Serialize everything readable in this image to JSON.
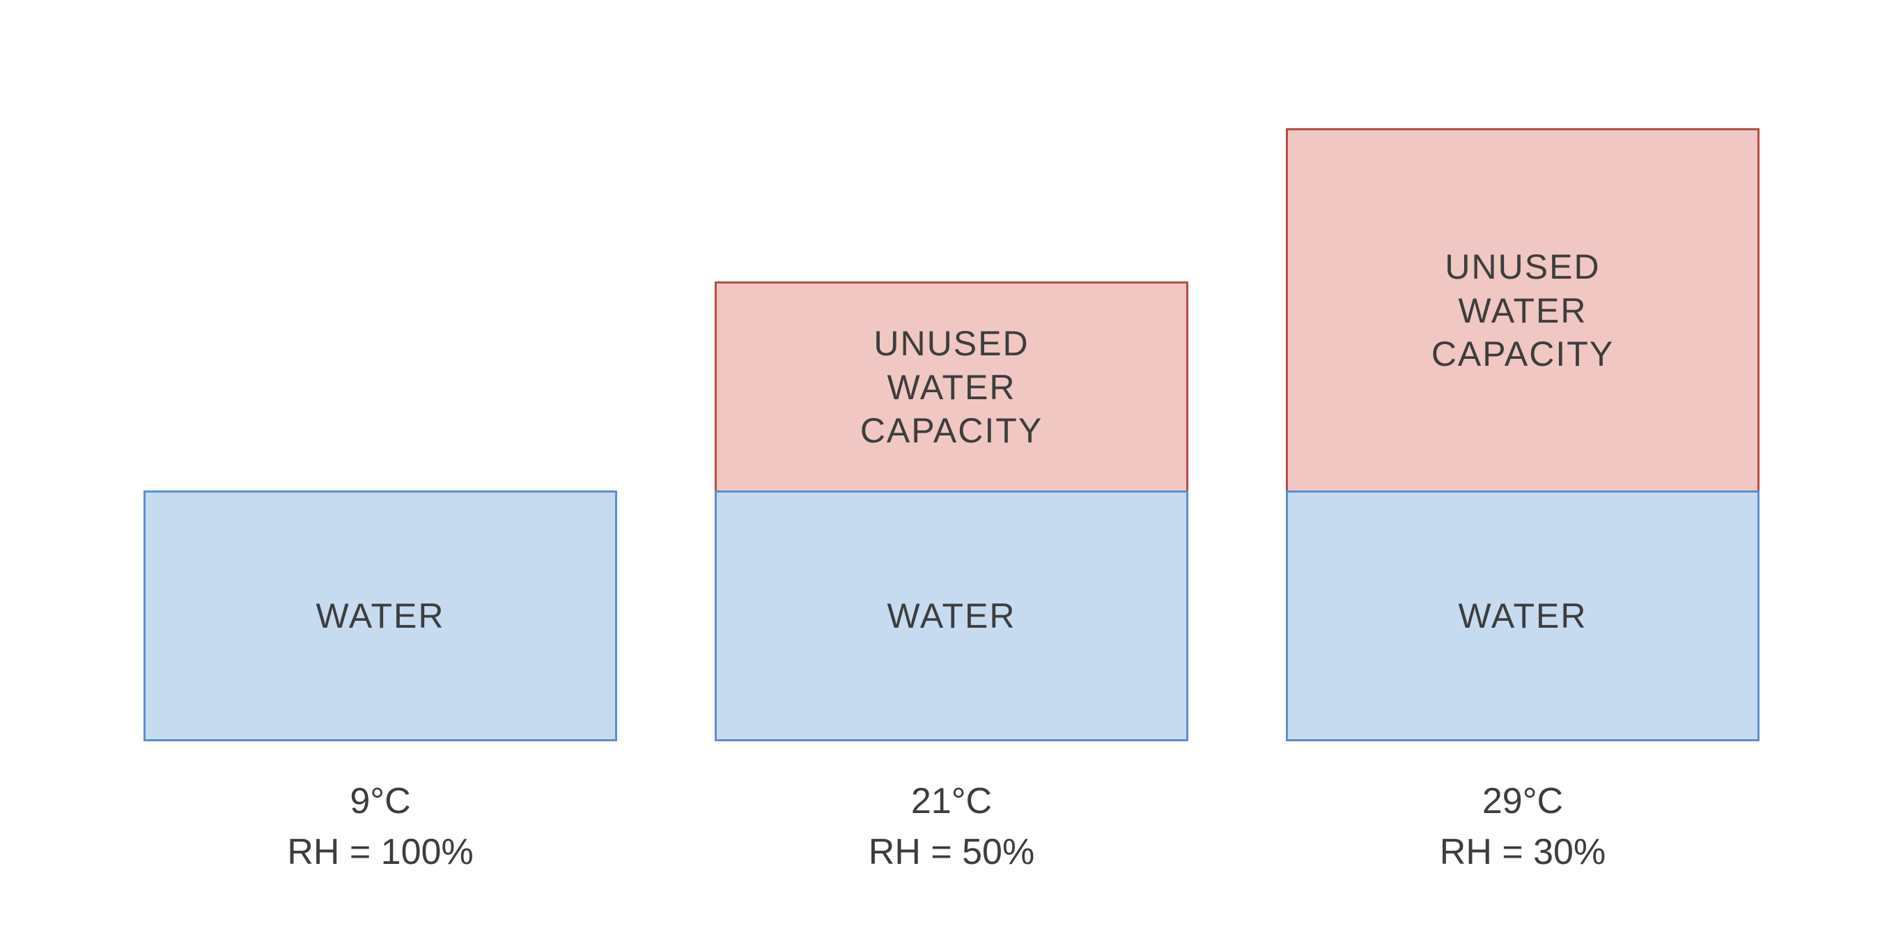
{
  "diagram": {
    "type": "infographic",
    "background_color": "#ffffff",
    "water_fill": "#c7dbf0",
    "water_border": "#5a8fcf",
    "unused_fill": "#f0c7c2",
    "unused_border": "#b54d42",
    "text_color": "#3d3d3d",
    "box_font_size": 50,
    "caption_font_size": 52,
    "box_font_weight": "400",
    "columns": [
      {
        "water_label": "WATER",
        "unused_label": "",
        "water_height": 360,
        "unused_height": 0,
        "temp_label": "9°C",
        "rh_label": "RH = 100%"
      },
      {
        "water_label": "WATER",
        "unused_label": "UNUSED\nWATER\nCAPACITY",
        "water_height": 360,
        "unused_height": 300,
        "temp_label": "21°C",
        "rh_label": "RH = 50%"
      },
      {
        "water_label": "WATER",
        "unused_label": "UNUSED\nWATER\nCAPACITY",
        "water_height": 360,
        "unused_height": 520,
        "temp_label": "29°C",
        "rh_label": "RH = 30%"
      }
    ]
  }
}
